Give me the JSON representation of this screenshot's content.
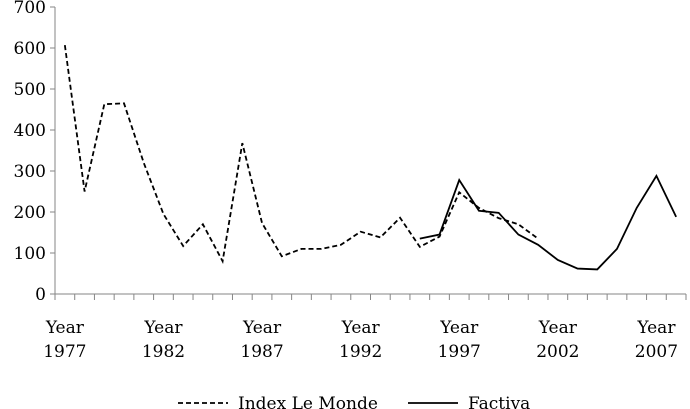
{
  "chart_data": {
    "type": "line",
    "title": "",
    "xlabel": "",
    "ylabel": "",
    "ylim": [
      0,
      700
    ],
    "y_ticks": [
      0,
      100,
      200,
      300,
      400,
      500,
      600,
      700
    ],
    "x": [
      1977,
      1978,
      1979,
      1980,
      1981,
      1982,
      1983,
      1984,
      1985,
      1986,
      1987,
      1988,
      1989,
      1990,
      1991,
      1992,
      1993,
      1994,
      1995,
      1996,
      1997,
      1998,
      1999,
      2000,
      2001,
      2002,
      2003,
      2004,
      2005,
      2006,
      2007,
      2008
    ],
    "x_tick_labels": [
      {
        "x": 1977,
        "line1": "Year",
        "line2": "1977"
      },
      {
        "x": 1982,
        "line1": "Year",
        "line2": "1982"
      },
      {
        "x": 1987,
        "line1": "Year",
        "line2": "1987"
      },
      {
        "x": 1992,
        "line1": "Year",
        "line2": "1992"
      },
      {
        "x": 1997,
        "line1": "Year",
        "line2": "1997"
      },
      {
        "x": 2002,
        "line1": "Year",
        "line2": "2002"
      },
      {
        "x": 2007,
        "line1": "Year",
        "line2": "2007"
      }
    ],
    "grid": false,
    "legend_position": "bottom",
    "series": [
      {
        "name": "Index Le Monde",
        "style": "dashed",
        "color": "#000000",
        "values": [
          607,
          250,
          463,
          465,
          320,
          195,
          117,
          170,
          80,
          368,
          173,
          92,
          110,
          110,
          120,
          152,
          138,
          186,
          115,
          140,
          248,
          210,
          185,
          170,
          135,
          null,
          null,
          null,
          null,
          null,
          null,
          null
        ]
      },
      {
        "name": "Factiva",
        "style": "solid",
        "color": "#000000",
        "values": [
          null,
          null,
          null,
          null,
          null,
          null,
          null,
          null,
          null,
          null,
          null,
          null,
          null,
          null,
          null,
          null,
          null,
          null,
          135,
          145,
          278,
          203,
          198,
          145,
          120,
          83,
          62,
          60,
          110,
          210,
          288,
          188
        ]
      }
    ]
  }
}
